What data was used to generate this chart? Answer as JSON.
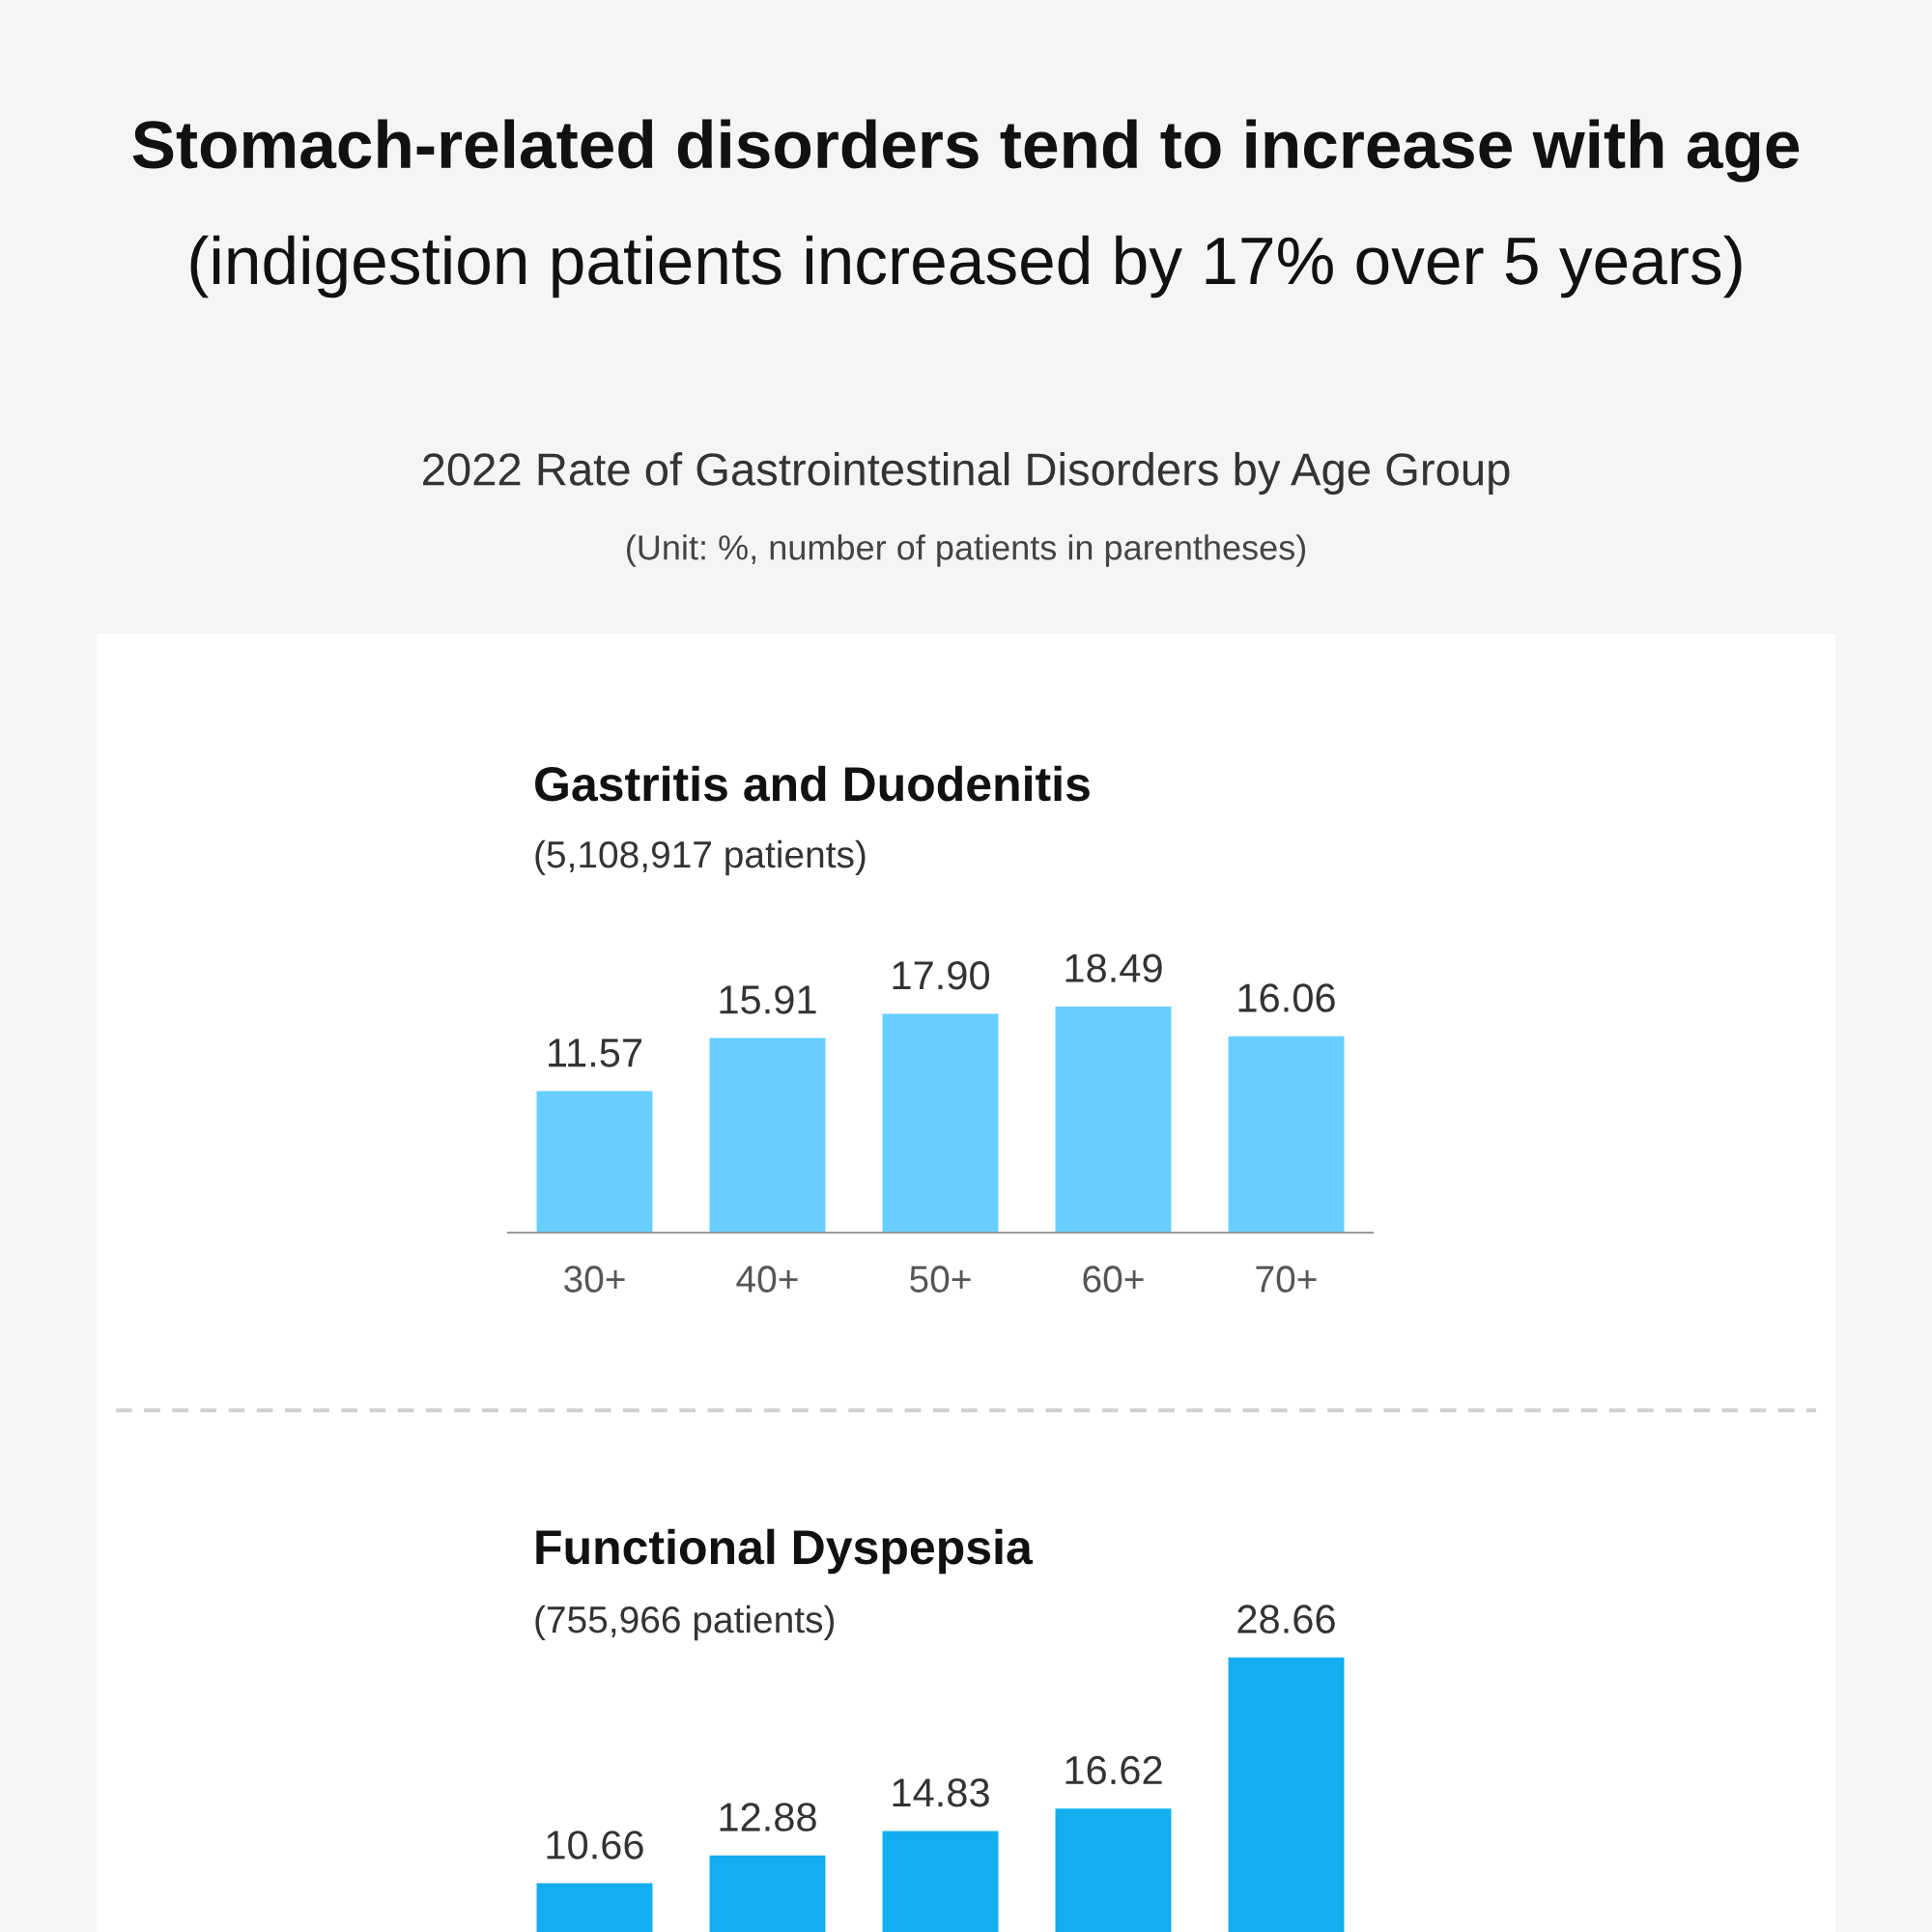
{
  "chart_data": [
    {
      "type": "bar",
      "title": "Gastritis and Duodenitis",
      "subtitle": "(5,108,917 patients)",
      "annotations": [
        "Stomach-related disorders tend to increase with age",
        "(indigestion patients increased by 17% over 5 years)",
        "2022 Rate of Gastrointestinal Disorders by Age Group",
        "(Unit: %, number of patients in parentheses)"
      ],
      "categories": [
        "30+",
        "40+",
        "50+",
        "60+",
        "70+"
      ],
      "values": [
        11.57,
        15.91,
        17.9,
        18.49,
        16.06
      ],
      "value_labels": [
        "11.57",
        "15.91",
        "17.90",
        "18.49",
        "16.06"
      ],
      "color": "#66cfff",
      "tick_labels": "x",
      "grid": false,
      "legend": false
    },
    {
      "type": "bar",
      "title": "Functional Dyspepsia",
      "subtitle": "(755,966 patients)",
      "categories": [
        null,
        null,
        null,
        null,
        null
      ],
      "values": [
        10.66,
        12.88,
        14.83,
        16.62,
        28.66
      ],
      "value_labels": [
        "10.66",
        "12.88",
        "14.83",
        "16.62",
        "28.66"
      ],
      "color": "#12aef0",
      "tick_labels": false,
      "grid": false,
      "legend": false
    }
  ]
}
